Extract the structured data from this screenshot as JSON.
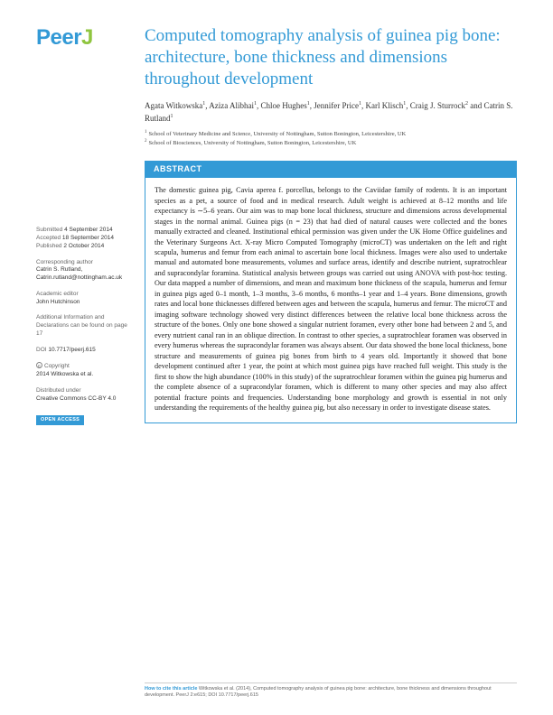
{
  "logo": {
    "part1": "Peer",
    "part2": "J"
  },
  "title": "Computed tomography analysis of guinea pig bone: architecture, bone thickness and dimensions throughout development",
  "authors_html": "Agata Witkowska¹, Aziza Alibhai¹, Chloe Hughes¹, Jennifer Price¹, Karl Klisch¹, Craig J. Sturrock² and Catrin S. Rutland¹",
  "authors": [
    {
      "name": "Agata Witkowska",
      "aff": "1"
    },
    {
      "name": "Aziza Alibhai",
      "aff": "1"
    },
    {
      "name": "Chloe Hughes",
      "aff": "1"
    },
    {
      "name": "Jennifer Price",
      "aff": "1"
    },
    {
      "name": "Karl Klisch",
      "aff": "1"
    },
    {
      "name": "Craig J. Sturrock",
      "aff": "2"
    },
    {
      "name": "Catrin S. Rutland",
      "aff": "1"
    }
  ],
  "affiliations": [
    {
      "num": "1",
      "text": "School of Veterinary Medicine and Science, University of Nottingham, Sutton Bonington, Leicestershire, UK"
    },
    {
      "num": "2",
      "text": "School of Biosciences, University of Nottingham, Sutton Bonington, Leicestershire, UK"
    }
  ],
  "sidebar": {
    "submitted_label": "Submitted",
    "submitted": "4 September 2014",
    "accepted_label": "Accepted",
    "accepted": "18 September 2014",
    "published_label": "Published",
    "published": "2 October 2014",
    "corresponding_label": "Corresponding author",
    "corresponding_name": "Catrin S. Rutland,",
    "corresponding_email": "Catrin.rutland@nottingham.ac.uk",
    "editor_label": "Academic editor",
    "editor": "John Hutchinson",
    "additional_label": "Additional Information and Declarations can be found on page 17",
    "doi_label": "DOI",
    "doi": "10.7717/peerj.615",
    "copyright_label": "Copyright",
    "copyright": "2014 Witkowska et al.",
    "distributed_label": "Distributed under",
    "distributed": "Creative Commons CC-BY 4.0",
    "open_access": "OPEN ACCESS"
  },
  "abstract": {
    "header": "ABSTRACT",
    "text": "The domestic guinea pig, Cavia aperea f. porcellus, belongs to the Caviidae family of rodents. It is an important species as a pet, a source of food and in medical research. Adult weight is achieved at 8–12 months and life expectancy is ∼5–6 years. Our aim was to map bone local thickness, structure and dimensions across developmental stages in the normal animal. Guinea pigs (n = 23) that had died of natural causes were collected and the bones manually extracted and cleaned. Institutional ethical permission was given under the UK Home Office guidelines and the Veterinary Surgeons Act. X-ray Micro Computed Tomography (microCT) was undertaken on the left and right scapula, humerus and femur from each animal to ascertain bone local thickness. Images were also used to undertake manual and automated bone measurements, volumes and surface areas, identify and describe nutrient, supratrochlear and supracondylar foramina. Statistical analysis between groups was carried out using ANOVA with post-hoc testing. Our data mapped a number of dimensions, and mean and maximum bone thickness of the scapula, humerus and femur in guinea pigs aged 0–1 month, 1–3 months, 3–6 months, 6 months–1 year and 1–4 years. Bone dimensions, growth rates and local bone thicknesses differed between ages and between the scapula, humerus and femur. The microCT and imaging software technology showed very distinct differences between the relative local bone thickness across the structure of the bones. Only one bone showed a singular nutrient foramen, every other bone had between 2 and 5, and every nutrient canal ran in an oblique direction. In contrast to other species, a supratrochlear foramen was observed in every humerus whereas the supracondylar foramen was always absent. Our data showed the bone local thickness, bone structure and measurements of guinea pig bones from birth to 4 years old. Importantly it showed that bone development continued after 1 year, the point at which most guinea pigs have reached full weight. This study is the first to show the high abundance (100% in this study) of the supratrochlear foramen within the guinea pig humerus and the complete absence of a supracondylar foramen, which is different to many other species and may also affect potential fracture points and frequencies. Understanding bone morphology and growth is essential in not only understanding the requirements of the healthy guinea pig, but also necessary in order to investigate disease states."
  },
  "footer": {
    "cite_label": "How to cite this article",
    "cite_text": "Witkowska et al. (2014), Computed tomography analysis of guinea pig bone: architecture, bone thickness and dimensions throughout development. PeerJ 2:e615; DOI 10.7717/peerj.615"
  },
  "colors": {
    "brand_blue": "#339ad6",
    "brand_green": "#8fc53f",
    "text": "#222222",
    "muted": "#666666"
  }
}
